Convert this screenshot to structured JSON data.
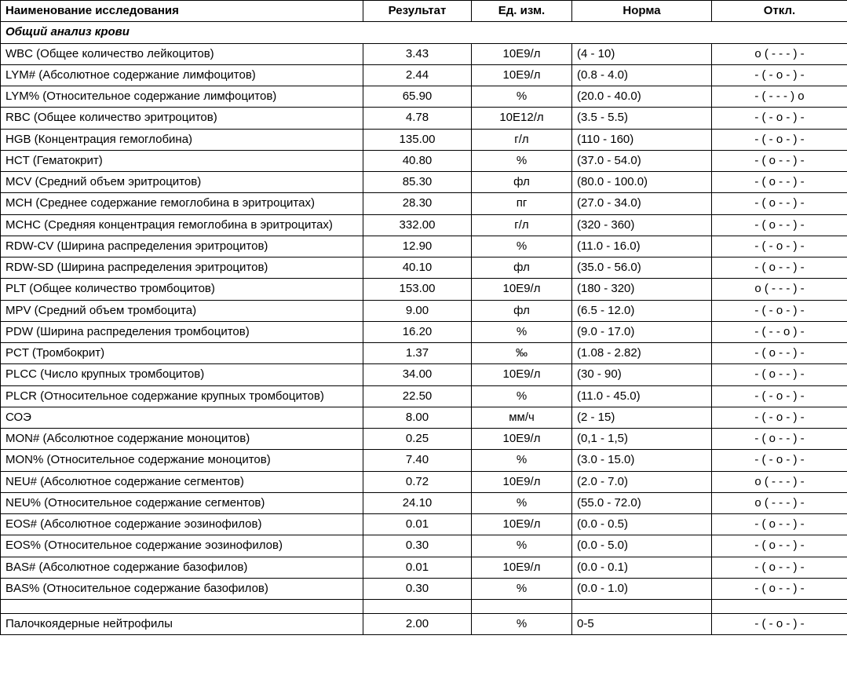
{
  "columns": {
    "name": "Наименование исследования",
    "result": "Результат",
    "unit": "Ед. изм.",
    "norm": "Норма",
    "deviation": "Откл."
  },
  "section_title": "Общий анализ крови",
  "rows": [
    {
      "name": "WBC (Общее количество лейкоцитов)",
      "result": "3.43",
      "unit": "10E9/л",
      "norm": "(4 - 10)",
      "dev": "o ( - - - ) -"
    },
    {
      "name": "LYM# (Абсолютное содержание лимфоцитов)",
      "result": "2.44",
      "unit": "10E9/л",
      "norm": "(0.8 - 4.0)",
      "dev": "- ( - o - ) -"
    },
    {
      "name": "LYM% (Относительное содержание лимфоцитов)",
      "result": "65.90",
      "unit": "%",
      "norm": "(20.0 - 40.0)",
      "dev": "- ( - - - ) o"
    },
    {
      "name": "RBC (Общее количество эритроцитов)",
      "result": "4.78",
      "unit": "10E12/л",
      "norm": "(3.5 - 5.5)",
      "dev": "- ( - o - ) -"
    },
    {
      "name": "HGB (Концентрация гемоглобина)",
      "result": "135.00",
      "unit": "г/л",
      "norm": "(110 - 160)",
      "dev": "- ( - o - ) -"
    },
    {
      "name": "HCT (Гематокрит)",
      "result": "40.80",
      "unit": "%",
      "norm": "(37.0 - 54.0)",
      "dev": "- ( o - - ) -"
    },
    {
      "name": "MCV (Средний объем эритроцитов)",
      "result": "85.30",
      "unit": "фл",
      "norm": "(80.0 - 100.0)",
      "dev": "- ( o - - ) -"
    },
    {
      "name": "MCH (Среднее содержание гемоглобина в эритроцитах)",
      "result": "28.30",
      "unit": "пг",
      "norm": "(27.0 - 34.0)",
      "dev": "- ( o - - ) -"
    },
    {
      "name": "MCHC (Средняя концентрация гемоглобина в эритроцитах)",
      "result": "332.00",
      "unit": "г/л",
      "norm": "(320 - 360)",
      "dev": "- ( o - - ) -"
    },
    {
      "name": "RDW-CV (Ширина распределения эритроцитов)",
      "result": "12.90",
      "unit": "%",
      "norm": "(11.0 - 16.0)",
      "dev": "- ( - o - ) -"
    },
    {
      "name": "RDW-SD (Ширина распределения эритроцитов)",
      "result": "40.10",
      "unit": "фл",
      "norm": "(35.0 - 56.0)",
      "dev": "- ( o - - ) -"
    },
    {
      "name": "PLT (Общее количество тромбоцитов)",
      "result": "153.00",
      "unit": "10E9/л",
      "norm": "(180 - 320)",
      "dev": "o ( - - - ) -"
    },
    {
      "name": "MPV (Средний объем тромбоцита)",
      "result": "9.00",
      "unit": "фл",
      "norm": "(6.5 - 12.0)",
      "dev": "- ( - o - ) -"
    },
    {
      "name": "PDW (Ширина распределения тромбоцитов)",
      "result": "16.20",
      "unit": "%",
      "norm": "(9.0 - 17.0)",
      "dev": "- ( - - o ) -"
    },
    {
      "name": "PCT (Тромбокрит)",
      "result": "1.37",
      "unit": "‰",
      "norm": "(1.08 - 2.82)",
      "dev": "- ( o - - ) -"
    },
    {
      "name": "PLCC (Число крупных тромбоцитов)",
      "result": "34.00",
      "unit": "10E9/л",
      "norm": "(30 - 90)",
      "dev": "- ( o - - ) -"
    },
    {
      "name": "PLCR (Относительное содержание крупных тромбоцитов)",
      "result": "22.50",
      "unit": "%",
      "norm": "(11.0 - 45.0)",
      "dev": "- ( - o - ) -"
    },
    {
      "name": "СОЭ",
      "result": "8.00",
      "unit": "мм/ч",
      "norm": "(2 - 15)",
      "dev": "- ( - o - ) -"
    },
    {
      "name": "MON# (Абсолютное содержание моноцитов)",
      "result": "0.25",
      "unit": "10E9/л",
      "norm": "(0,1 - 1,5)",
      "dev": "- ( o - - ) -"
    },
    {
      "name": "MON% (Относительное содержание моноцитов)",
      "result": "7.40",
      "unit": "%",
      "norm": "(3.0 - 15.0)",
      "dev": "- ( - o - ) -"
    },
    {
      "name": "NEU# (Абсолютное содержание сегментов)",
      "result": "0.72",
      "unit": "10E9/л",
      "norm": "(2.0 - 7.0)",
      "dev": "o ( - - - ) -"
    },
    {
      "name": "NEU% (Относительное содержание сегментов)",
      "result": "24.10",
      "unit": "%",
      "norm": "(55.0 - 72.0)",
      "dev": "o ( - - - ) -"
    },
    {
      "name": "EOS# (Абсолютное содержание эозинофилов)",
      "result": "0.01",
      "unit": "10E9/л",
      "norm": "(0.0 - 0.5)",
      "dev": "- ( o - - ) -"
    },
    {
      "name": "EOS% (Относительное содержание эозинофилов)",
      "result": "0.30",
      "unit": "%",
      "norm": "(0.0 - 5.0)",
      "dev": "- ( o - - ) -"
    },
    {
      "name": "BAS# (Абсолютное содержание базофилов)",
      "result": "0.01",
      "unit": "10E9/л",
      "norm": "(0.0 - 0.1)",
      "dev": "- ( o - - ) -"
    },
    {
      "name": "BAS% (Относительное содержание базофилов)",
      "result": "0.30",
      "unit": "%",
      "norm": "(0.0 - 1.0)",
      "dev": "- ( o - - ) -"
    }
  ],
  "rows_after": [
    {
      "name": "Палочкоядерные нейтрофилы",
      "result": "2.00",
      "unit": "%",
      "norm": "0-5",
      "dev": "- ( - o - ) -"
    }
  ]
}
